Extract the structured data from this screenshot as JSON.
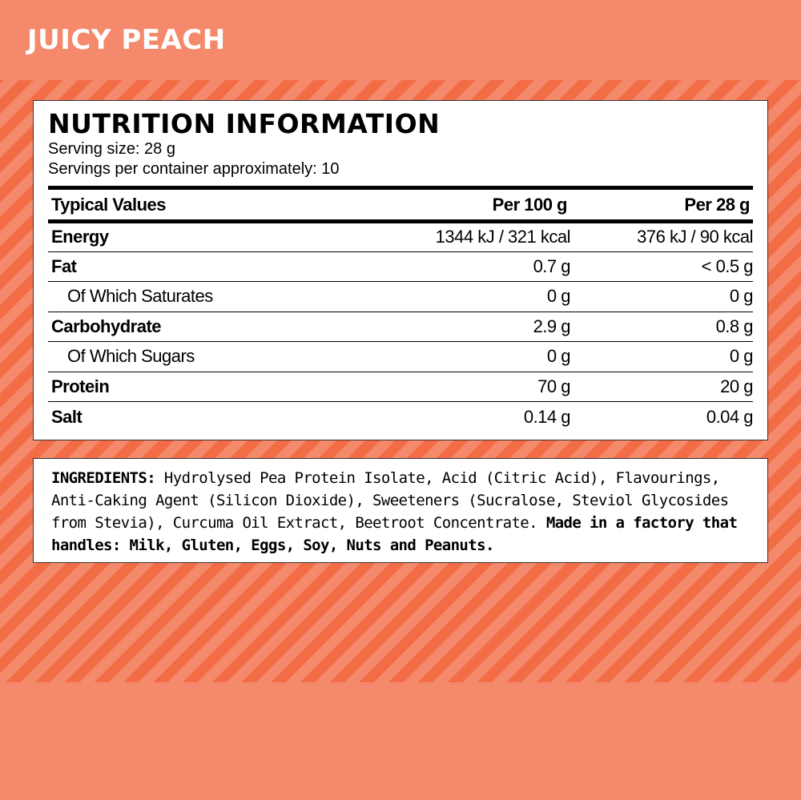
{
  "title": "JUICY PEACH",
  "colors": {
    "background": "#f5896c",
    "stripe": "#f26c45"
  },
  "nutrition": {
    "heading": "NUTRITION INFORMATION",
    "serving_size": "Serving size: 28 g",
    "servings": "Servings per container approximately: 10",
    "columns": [
      "Typical Values",
      "Per 100 g",
      "Per 28 g"
    ],
    "rows": [
      {
        "name": "Energy",
        "per100": "1344 kJ / 321 kcal",
        "perServing": "376 kJ / 90 kcal"
      },
      {
        "name": "Fat",
        "per100": "0.7 g",
        "perServing": "< 0.5  g"
      },
      {
        "name": "Of Which Saturates",
        "per100": "0 g",
        "perServing": "0 g"
      },
      {
        "name": "Carbohydrate",
        "per100": "2.9 g",
        "perServing": "0.8 g"
      },
      {
        "name": "Of Which Sugars",
        "per100": "0 g",
        "perServing": "0 g"
      },
      {
        "name": "Protein",
        "per100": "70 g",
        "perServing": "20 g"
      },
      {
        "name": "Salt",
        "per100": "0.14 g",
        "perServing": "0.04 g"
      }
    ]
  },
  "ingredients": {
    "label": "INGREDIENTS:",
    "text": " Hydrolysed Pea Protein Isolate, Acid (Citric Acid), Flavourings, Anti-Caking Agent (Silicon Dioxide), Sweeteners (Sucralose, Steviol Glycosides from Stevia), Curcuma Oil Extract, Beetroot Concentrate. ",
    "allergen": "Made in a factory that handles: Milk, Gluten, Eggs, Soy, Nuts and Peanuts."
  }
}
